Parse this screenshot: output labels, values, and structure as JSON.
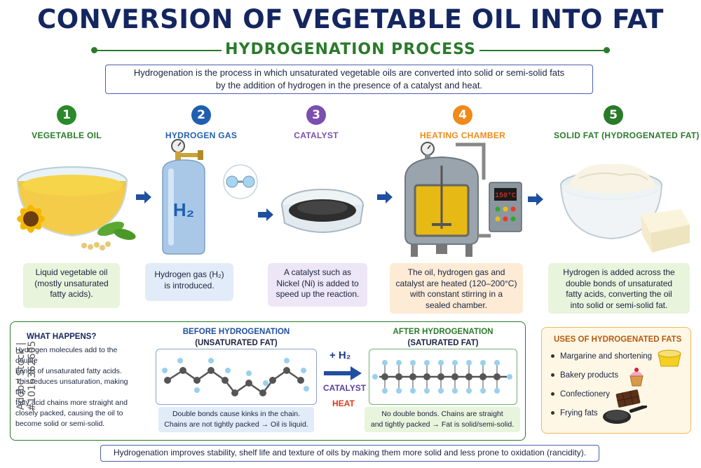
{
  "title": "CONVERSION OF VEGETABLE OIL INTO FAT",
  "subtitle": "HYDROGENATION PROCESS",
  "intro": {
    "line1": "Hydrogenation is the process in which unsaturated vegetable oils are converted into solid or semi-solid fats",
    "line2": "by the addition of hydrogen in the presence of a catalyst and heat."
  },
  "colors": {
    "green": "#2a7a2a",
    "blue": "#1f5fb0",
    "purple": "#7a4fb0",
    "orange": "#f08a1a",
    "navy": "#14265f"
  },
  "steps": [
    {
      "num": "1",
      "label": "VEGETABLE OIL",
      "desc": [
        "Liquid vegetable oil",
        "(mostly unsaturated",
        "fatty acids)."
      ]
    },
    {
      "num": "2",
      "label": "HYDROGEN GAS",
      "desc": [
        "Hydrogen gas (H₂)",
        "is introduced."
      ]
    },
    {
      "num": "3",
      "label": "CATALYST",
      "desc": [
        "A catalyst such as",
        "Nickel (Ni) is added to",
        "speed up the reaction."
      ]
    },
    {
      "num": "4",
      "label": "HEATING CHAMBER",
      "desc": [
        "The oil, hydrogen gas and",
        "catalyst are heated (120–200°C)",
        "with constant stirring in a",
        "sealed chamber."
      ]
    },
    {
      "num": "5",
      "label": "SOLID FAT (HYDROGENATED FAT)",
      "desc": [
        "Hydrogen is added across the",
        "double bonds of unsaturated",
        "fatty acids, converting the oil",
        "into solid or semi-solid fat."
      ]
    }
  ],
  "cylinder_label": "H₂",
  "panel_display": "150°C",
  "what": {
    "title": "WHAT HAPPENS?",
    "lines": [
      "Hydrogen molecules add to the double",
      "bonds of unsaturated fatty acids.",
      "This reduces unsaturation, making the",
      "fatty acid chains more straight and",
      "closely packed, causing the oil to",
      "become solid or semi-solid."
    ]
  },
  "before": {
    "title": "BEFORE HYDROGENATION",
    "sub": "(UNSATURATED FAT)",
    "note1": "Double bonds cause kinks in the chain.",
    "note2": "Chains are not tightly packed → Oil is liquid."
  },
  "after": {
    "title": "AFTER HYDROGENATION",
    "sub": "(SATURATED FAT)",
    "note1": "No double bonds. Chains are straight",
    "note2": "and tightly packed → Fat is solid/semi-solid."
  },
  "middle": {
    "h2": "+ H₂",
    "catalyst": "CATALYST",
    "heat": "HEAT"
  },
  "uses": {
    "title": "USES OF HYDROGENATED FATS",
    "items": [
      "Margarine and shortening",
      "Bakery products",
      "Confectionery",
      "Frying fats"
    ]
  },
  "footer": "Hydrogenation improves stability, shelf life and texture of oils by making them more solid and less prone to oxidation (rancidity).",
  "watermark": "Adobe Stock | #1016362605"
}
